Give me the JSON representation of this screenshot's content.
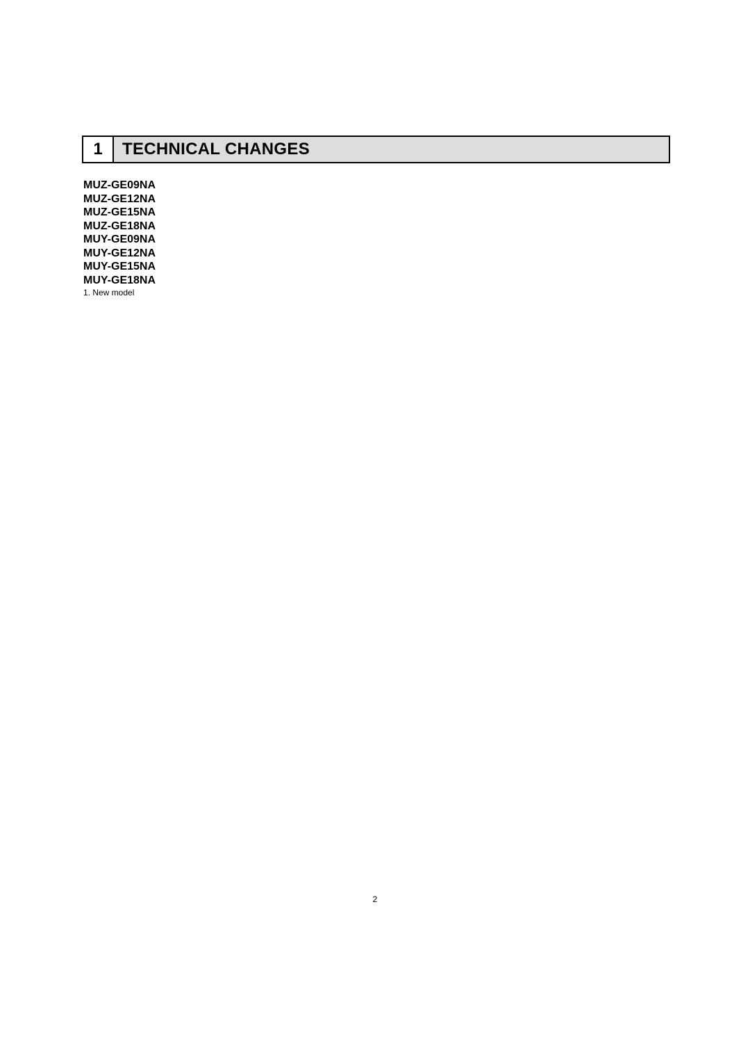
{
  "section": {
    "number": "1",
    "title": "TECHNICAL CHANGES"
  },
  "models": [
    "MUZ-GE09NA",
    "MUZ-GE12NA",
    "MUZ-GE15NA",
    "MUZ-GE18NA",
    "MUY-GE09NA",
    "MUY-GE12NA",
    "MUY-GE15NA",
    "MUY-GE18NA"
  ],
  "note": "1. New model",
  "page_number": "2",
  "colors": {
    "background": "#ffffff",
    "text": "#000000",
    "title_bg": "#dddddd",
    "border": "#000000"
  }
}
